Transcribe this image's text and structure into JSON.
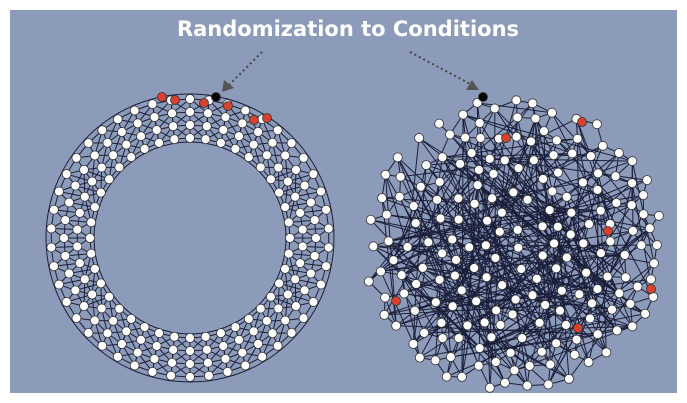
{
  "title": "Randomization to Conditions"
}
